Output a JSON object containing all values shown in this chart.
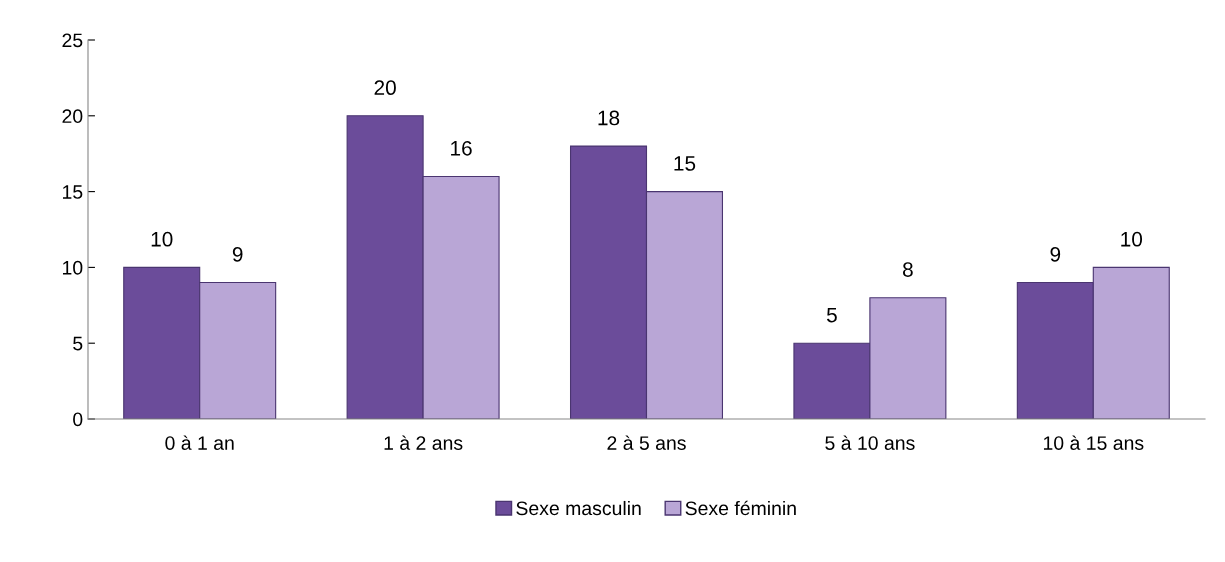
{
  "chart_data": {
    "type": "bar",
    "categories": [
      "0 à 1 an",
      "1 à 2 ans",
      "2 à 5 ans",
      "5 à 10 ans",
      "10 à 15 ans"
    ],
    "series": [
      {
        "name": "Sexe masculin",
        "color": "#6b4c9a",
        "values": [
          10,
          20,
          18,
          5,
          9
        ]
      },
      {
        "name": "Sexe féminin",
        "color": "#b9a6d6",
        "values": [
          9,
          16,
          15,
          8,
          10
        ]
      }
    ],
    "ylim": [
      0,
      25
    ],
    "yticks": [
      0,
      5,
      10,
      15,
      20,
      25
    ],
    "data_labels": true,
    "legend": "bottom",
    "grid": false
  }
}
